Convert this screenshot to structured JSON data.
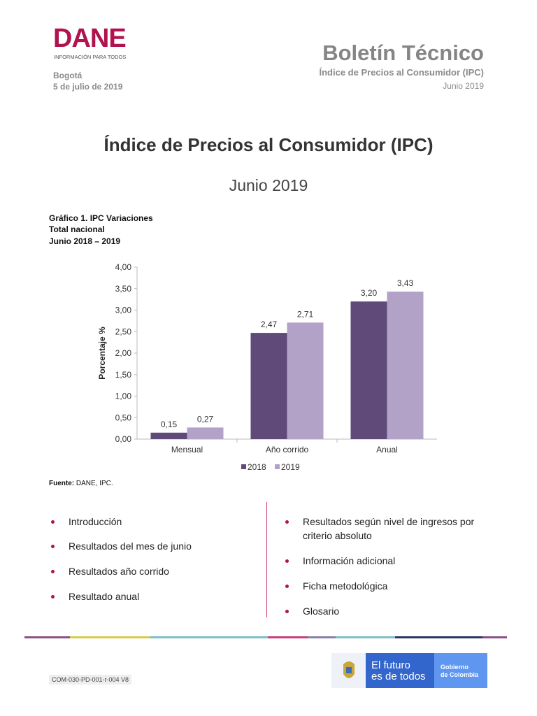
{
  "header": {
    "logo": "DANE",
    "logo_tagline": "INFORMACIÓN PARA TODOS",
    "city": "Bogotá",
    "date": "5 de julio de 2019",
    "bulletin_title": "Boletín Técnico",
    "bulletin_subtitle": "Índice de Precios al Consumidor (IPC)",
    "bulletin_period": "Junio 2019"
  },
  "main": {
    "title": "Índice de Precios al Consumidor (IPC)",
    "subtitle": "Junio 2019",
    "chart_caption": [
      "Gráfico 1. IPC Variaciones",
      "Total nacional",
      "Junio 2018 – 2019"
    ],
    "source_label": "Fuente:",
    "source_text": " DANE, IPC."
  },
  "chart_data": {
    "type": "bar",
    "categories": [
      "Mensual",
      "Año corrido",
      "Anual"
    ],
    "series": [
      {
        "name": "2018",
        "values": [
          0.15,
          2.47,
          3.2
        ],
        "color": "#5f4a7a"
      },
      {
        "name": "2019",
        "values": [
          0.27,
          2.71,
          3.43
        ],
        "color": "#b3a2c8"
      }
    ],
    "data_labels": [
      [
        "0,15",
        "2,47",
        "3,20"
      ],
      [
        "0,27",
        "2,71",
        "3,43"
      ]
    ],
    "ylabel": "Porcentaje %",
    "ylim": [
      0,
      4
    ],
    "yticks": [
      "0,00",
      "0,50",
      "1,00",
      "1,50",
      "2,00",
      "2,50",
      "3,00",
      "3,50",
      "4,00"
    ],
    "legend": "bottom",
    "grid": false
  },
  "toc": {
    "left": [
      "Introducción",
      "Resultados del mes de junio",
      "Resultados año corrido",
      "Resultado anual"
    ],
    "right": [
      "Resultados según nivel de ingresos por criterio absoluto",
      "Información adicional",
      "Ficha metodológica",
      "Glosario"
    ]
  },
  "footer": {
    "code": "COM-030-PD-001-r-004 V8",
    "gov_slogan_1": "El futuro",
    "gov_slogan_2": "es de todos",
    "gov_name_1": "Gobierno",
    "gov_name_2": "de Colombia"
  }
}
